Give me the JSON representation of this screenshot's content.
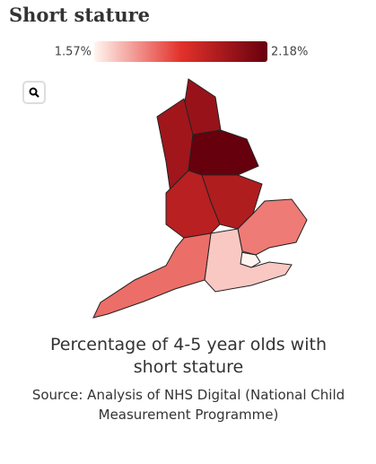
{
  "chart_data": {
    "type": "choropleth",
    "title": "Short stature",
    "legend": {
      "min": {
        "value": 1.57,
        "label": "1.57%"
      },
      "max": {
        "value": 2.18,
        "label": "2.18%"
      }
    },
    "colors": [
      "#fff5f0",
      "#e3312b",
      "#67000d"
    ],
    "region_values": [
      2.06,
      2.04,
      2.18,
      2.0,
      1.98,
      1.76,
      1.57,
      1.64,
      1.78
    ],
    "caption": "Percentage of 4-5 year olds with short stature",
    "source": "Source: Analysis of NHS Digital (National Child Measurement Programme)"
  }
}
